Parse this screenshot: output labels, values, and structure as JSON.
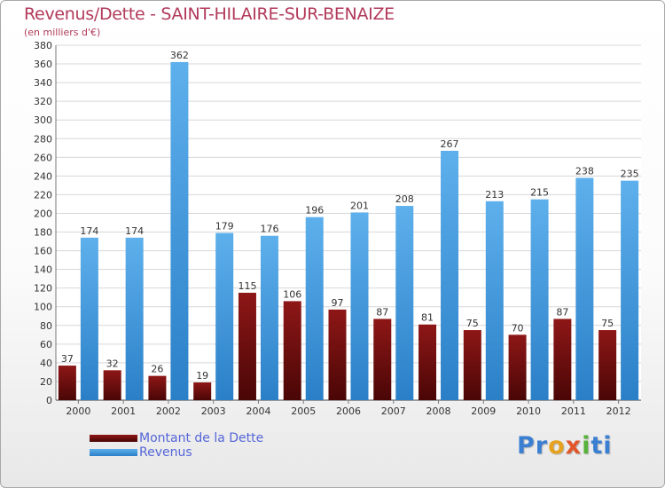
{
  "header": {
    "title": "Revenus/Dette - SAINT-HILAIRE-SUR-BENAIZE",
    "subtitle": "(en milliers d'€)"
  },
  "legend": {
    "debt_label": "Montant de la Dette",
    "revenue_label": "Revenus"
  },
  "brand": {
    "name": "Proxiti",
    "parts": [
      "Pr",
      "o",
      "x",
      "i",
      "ti"
    ]
  },
  "colors": {
    "debt": "#7a0d0d",
    "revenue": "#55a7e6",
    "title": "#b23a5a",
    "axis_text": "#333333"
  },
  "chart_data": {
    "type": "bar",
    "title": "Revenus/Dette - SAINT-HILAIRE-SUR-BENAIZE",
    "xlabel": "",
    "ylabel": "(en milliers d'€)",
    "ylim": [
      0,
      380
    ],
    "ytick_step": 20,
    "grid": true,
    "legend_position": "bottom-left",
    "categories": [
      "2000",
      "2001",
      "2002",
      "2003",
      "2004",
      "2005",
      "2006",
      "2007",
      "2008",
      "2009",
      "2010",
      "2011",
      "2012"
    ],
    "series": [
      {
        "name": "Montant de la Dette",
        "values": [
          37,
          32,
          26,
          19,
          115,
          106,
          97,
          87,
          81,
          75,
          70,
          87,
          75
        ]
      },
      {
        "name": "Revenus",
        "values": [
          174,
          174,
          362,
          179,
          176,
          196,
          201,
          208,
          267,
          213,
          215,
          238,
          235
        ]
      }
    ]
  }
}
